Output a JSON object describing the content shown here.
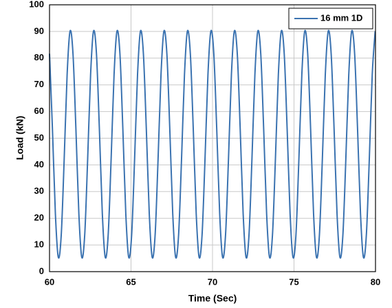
{
  "chart_data": {
    "type": "line",
    "xlabel": "Time (Sec)",
    "ylabel": "Load (kN)",
    "x": [
      60,
      60.18,
      60.36,
      60.54,
      60.72,
      60.9,
      61.08,
      61.26,
      61.44,
      61.62,
      61.8,
      61.98,
      62.16,
      62.34,
      62.52,
      62.7,
      62.88,
      63.06,
      63.24,
      63.42,
      63.6,
      63.78,
      63.96,
      64.14,
      64.32,
      64.5,
      64.68,
      64.86,
      65.04,
      65.22,
      65.4,
      65.58,
      65.76,
      65.94,
      66.12,
      66.3,
      66.48,
      66.66,
      66.84,
      67.02,
      67.2,
      67.38,
      67.56,
      67.74,
      67.92,
      68.1,
      68.28,
      68.46,
      68.64,
      68.82,
      69,
      69.18,
      69.36,
      69.54,
      69.72,
      69.9,
      70.08,
      70.26,
      70.44,
      70.62,
      70.8,
      70.98,
      71.16,
      71.34,
      71.52,
      71.7,
      71.88,
      72.06,
      72.24,
      72.42,
      72.6,
      72.78,
      72.96,
      73.14,
      73.32,
      73.5,
      73.68,
      73.86,
      74.04,
      74.22,
      74.4,
      74.58,
      74.76,
      74.94,
      75.12,
      75.3,
      75.48,
      75.66,
      75.84,
      76.02,
      76.2,
      76.38,
      76.56,
      76.74,
      76.92,
      77.1,
      77.28,
      77.46,
      77.64,
      77.82,
      78,
      78.18,
      78.36,
      78.54,
      78.72,
      78.9,
      79.08,
      79.26,
      79.44,
      79.62,
      79.8,
      79.98
    ],
    "series": [
      {
        "name": "16 mm 1D",
        "color": "#3a72b0",
        "values": [
          81.67,
          53.33,
          21.72,
          5.37,
          13.83,
          42.17,
          73.78,
          90.13,
          81.67,
          53.33,
          21.72,
          5.37,
          13.83,
          42.17,
          73.78,
          90.13,
          81.67,
          53.33,
          21.72,
          5.37,
          13.83,
          42.17,
          73.78,
          90.13,
          81.67,
          53.33,
          21.72,
          5.37,
          13.83,
          42.17,
          73.78,
          90.13,
          81.67,
          53.33,
          21.72,
          5.37,
          13.83,
          42.17,
          73.78,
          90.13,
          81.67,
          53.33,
          21.72,
          5.37,
          13.83,
          42.17,
          73.78,
          90.13,
          81.67,
          53.33,
          21.72,
          5.37,
          13.83,
          42.17,
          73.78,
          90.13,
          81.67,
          53.33,
          21.72,
          5.37,
          13.83,
          42.17,
          73.78,
          90.13,
          81.67,
          53.33,
          21.72,
          5.37,
          13.83,
          42.17,
          73.78,
          90.13,
          81.67,
          53.33,
          21.72,
          5.37,
          13.83,
          42.17,
          73.78,
          90.13,
          81.67,
          53.33,
          21.72,
          5.37,
          13.83,
          42.17,
          73.78,
          90.13,
          81.67,
          53.33,
          21.72,
          5.37,
          13.83,
          42.17,
          73.78,
          90.13,
          81.67,
          53.33,
          21.72,
          5.37,
          13.83,
          42.17,
          73.78,
          90.13,
          81.67,
          53.33,
          21.72,
          5.37,
          13.83,
          42.17,
          73.78,
          90.13
        ]
      }
    ],
    "xlim": [
      60,
      80
    ],
    "xticks": [
      60,
      65,
      70,
      75,
      80
    ],
    "ylim": [
      0,
      100
    ],
    "yticks": [
      0,
      10,
      20,
      30,
      40,
      50,
      60,
      70,
      80,
      90,
      100
    ],
    "grid": true,
    "legend": "upper right"
  }
}
